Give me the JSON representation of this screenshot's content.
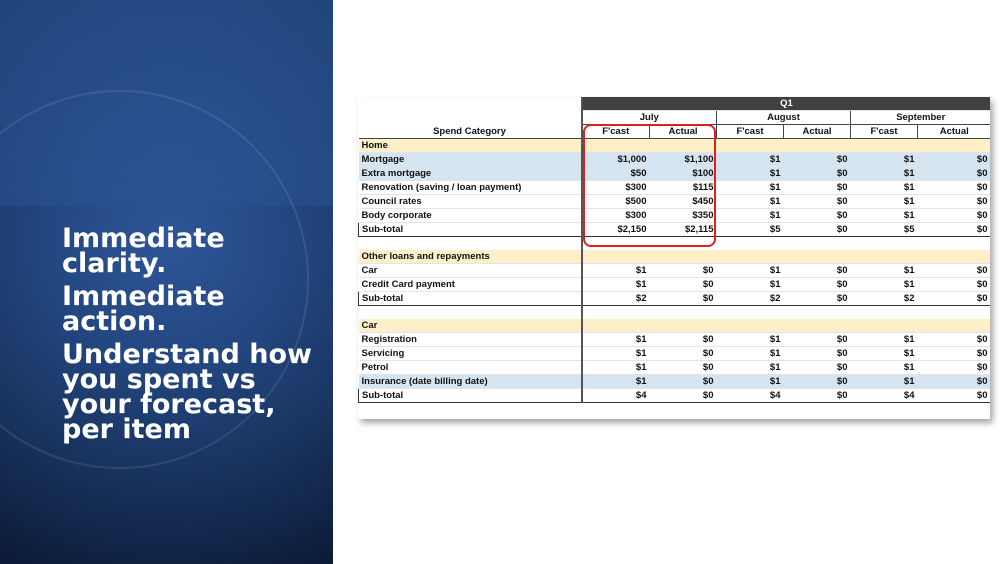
{
  "headline": [
    "Immediate clarity.",
    "Immediate action.",
    "Understand how you spent vs your forecast, per item"
  ],
  "table": {
    "quarter": "Q1",
    "category_header": "Spend Category",
    "months": [
      "July",
      "August",
      "September"
    ],
    "fcast_label": "F'cast",
    "actual_label": "Actual",
    "rows": [
      {
        "type": "category",
        "label": "Home"
      },
      {
        "type": "item",
        "label": "Mortgage",
        "highlight": true,
        "values": [
          "$1,000",
          "$1,100",
          "$1",
          "$0",
          "$1",
          "$0"
        ]
      },
      {
        "type": "item",
        "label": "Extra mortgage",
        "highlight": true,
        "values": [
          "$50",
          "$100",
          "$1",
          "$0",
          "$1",
          "$0"
        ]
      },
      {
        "type": "item",
        "label": "Renovation (saving / loan payment)",
        "bold": true,
        "values": [
          "$300",
          "$115",
          "$1",
          "$0",
          "$1",
          "$0"
        ]
      },
      {
        "type": "item",
        "label": "Council rates",
        "bold": true,
        "values": [
          "$500",
          "$450",
          "$1",
          "$0",
          "$1",
          "$0"
        ]
      },
      {
        "type": "item",
        "label": "Body corporate",
        "bold": true,
        "values": [
          "$300",
          "$350",
          "$1",
          "$0",
          "$1",
          "$0"
        ]
      },
      {
        "type": "subtotal",
        "label": "Sub-total",
        "values": [
          "$2,150",
          "$2,115",
          "$5",
          "$0",
          "$5",
          "$0"
        ]
      },
      {
        "type": "blank"
      },
      {
        "type": "category",
        "label": "Other loans and repayments"
      },
      {
        "type": "item",
        "label": "Car",
        "bold": true,
        "values": [
          "$1",
          "$0",
          "$1",
          "$0",
          "$1",
          "$0"
        ]
      },
      {
        "type": "item",
        "label": "Credit Card payment",
        "bold": true,
        "values": [
          "$1",
          "$0",
          "$1",
          "$0",
          "$1",
          "$0"
        ]
      },
      {
        "type": "subtotal",
        "label": "Sub-total",
        "values": [
          "$2",
          "$0",
          "$2",
          "$0",
          "$2",
          "$0"
        ]
      },
      {
        "type": "blank"
      },
      {
        "type": "category",
        "label": "Car"
      },
      {
        "type": "item",
        "label": "Registration",
        "bold": true,
        "values": [
          "$1",
          "$0",
          "$1",
          "$0",
          "$1",
          "$0"
        ]
      },
      {
        "type": "item",
        "label": "Servicing",
        "bold": true,
        "values": [
          "$1",
          "$0",
          "$1",
          "$0",
          "$1",
          "$0"
        ]
      },
      {
        "type": "item",
        "label": "Petrol",
        "bold": true,
        "values": [
          "$1",
          "$0",
          "$1",
          "$0",
          "$1",
          "$0"
        ]
      },
      {
        "type": "item",
        "label": "Insurance (date billing date)",
        "highlight": true,
        "values": [
          "$1",
          "$0",
          "$1",
          "$0",
          "$1",
          "$0"
        ]
      },
      {
        "type": "subtotal",
        "label": "Sub-total",
        "values": [
          "$4",
          "$0",
          "$4",
          "$0",
          "$4",
          "$0"
        ]
      }
    ]
  },
  "colors": {
    "panel_blue": "#23467f",
    "category_fill": "#fdf0c8",
    "highlight_fill": "#d5e4f1",
    "quarter_fill": "#404040",
    "focus_box": "#e02020"
  }
}
